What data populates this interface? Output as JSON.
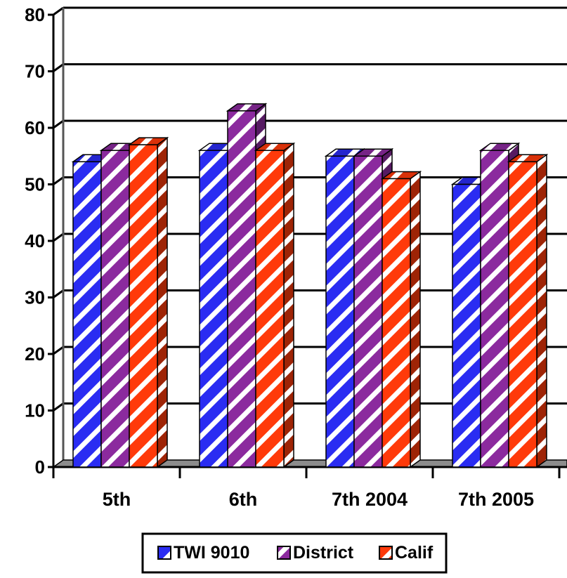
{
  "chart_data": {
    "type": "bar",
    "title": "",
    "xlabel": "",
    "ylabel": "",
    "categories": [
      "5th",
      "6th",
      "7th 2004",
      "7th 2005"
    ],
    "series": [
      {
        "name": "TWI 9010",
        "values": [
          54,
          56,
          55,
          50
        ],
        "color": "#2a2cf2"
      },
      {
        "name": "District",
        "values": [
          56,
          63,
          55,
          56
        ],
        "color": "#8b2a9e"
      },
      {
        "name": "Calif",
        "values": [
          57,
          56,
          51,
          54
        ],
        "color": "#ff3a0a"
      }
    ],
    "ylim": [
      0,
      80
    ],
    "yticks": [
      0,
      10,
      20,
      30,
      40,
      50,
      60,
      70,
      80
    ],
    "grid": true,
    "legend_position": "bottom",
    "style": "3d-clustered-columns-diagonal-stripes"
  }
}
